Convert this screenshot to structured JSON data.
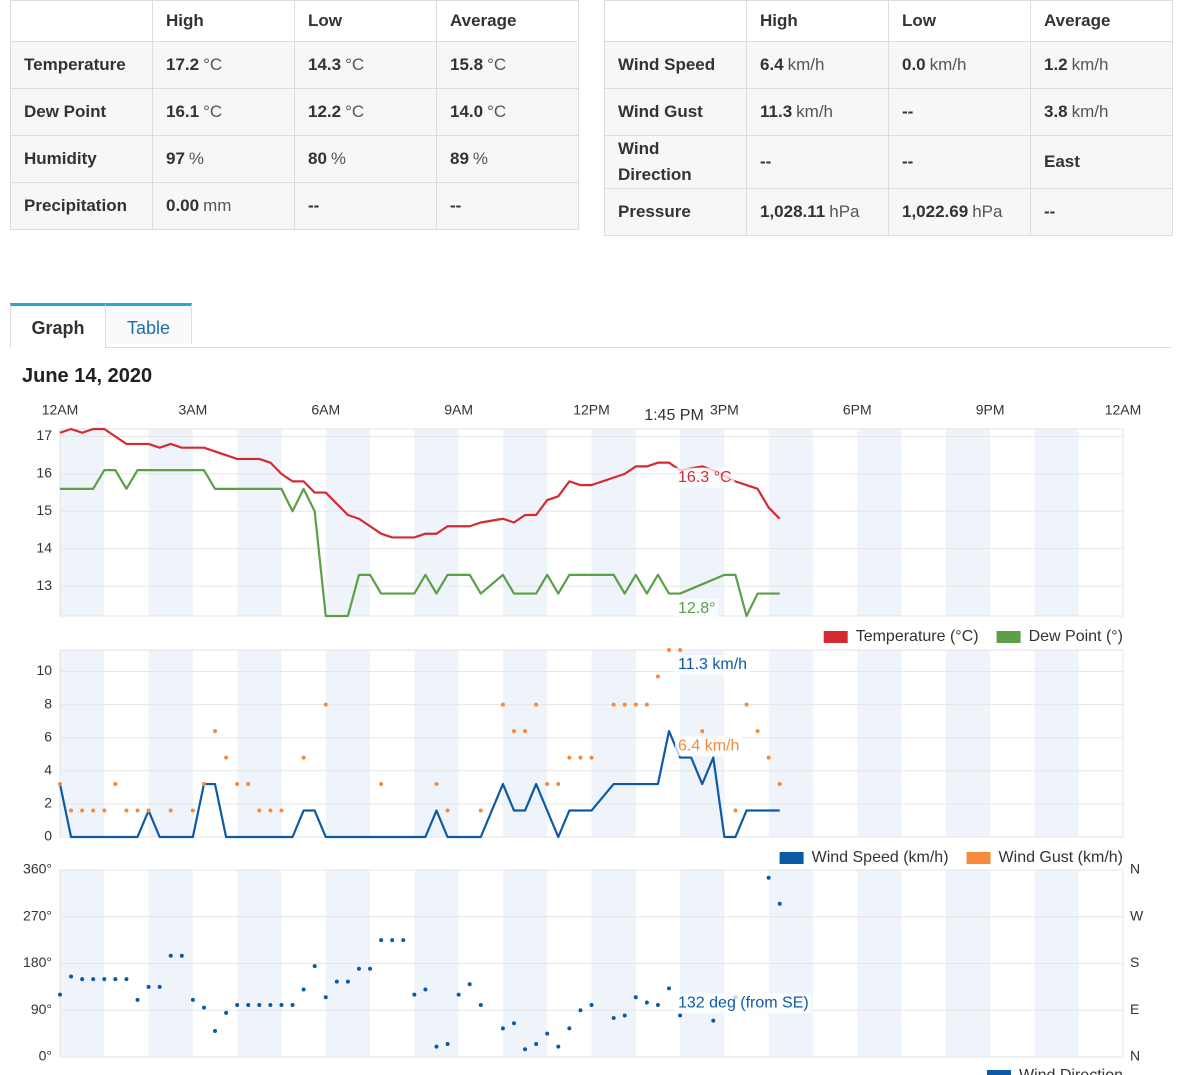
{
  "summary_tables": [
    {
      "columns": [
        "High",
        "Low",
        "Average"
      ],
      "rows": [
        {
          "label": "Temperature",
          "cells": [
            {
              "value": "17.2",
              "unit": "°C"
            },
            {
              "value": "14.3",
              "unit": "°C"
            },
            {
              "value": "15.8",
              "unit": "°C"
            }
          ]
        },
        {
          "label": "Dew Point",
          "cells": [
            {
              "value": "16.1",
              "unit": "°C"
            },
            {
              "value": "12.2",
              "unit": "°C"
            },
            {
              "value": "14.0",
              "unit": "°C"
            }
          ]
        },
        {
          "label": "Humidity",
          "cells": [
            {
              "value": "97",
              "unit": "%"
            },
            {
              "value": "80",
              "unit": "%"
            },
            {
              "value": "89",
              "unit": "%"
            }
          ]
        },
        {
          "label": "Precipitation",
          "cells": [
            {
              "value": "0.00",
              "unit": "mm"
            },
            {
              "value": "--"
            },
            {
              "value": "--"
            }
          ]
        }
      ]
    },
    {
      "columns": [
        "High",
        "Low",
        "Average"
      ],
      "rows": [
        {
          "label": "Wind Speed",
          "cells": [
            {
              "value": "6.4",
              "unit": "km/h"
            },
            {
              "value": "0.0",
              "unit": "km/h"
            },
            {
              "value": "1.2",
              "unit": "km/h"
            }
          ]
        },
        {
          "label": "Wind Gust",
          "cells": [
            {
              "value": "11.3",
              "unit": "km/h"
            },
            {
              "value": "--"
            },
            {
              "value": "3.8",
              "unit": "km/h"
            }
          ]
        },
        {
          "label": "Wind Direction",
          "cells": [
            {
              "value": "--"
            },
            {
              "value": "--"
            },
            {
              "value": "East"
            }
          ]
        },
        {
          "label": "Pressure",
          "cells": [
            {
              "value": "1,028.11",
              "unit": "hPa"
            },
            {
              "value": "1,022.69",
              "unit": "hPa"
            },
            {
              "value": "--"
            }
          ]
        }
      ]
    }
  ],
  "tabs": [
    "Graph",
    "Table"
  ],
  "date": "June 14, 2020",
  "chart_data": [
    {
      "type": "line",
      "xlim": [
        0,
        24
      ],
      "xticks": [
        {
          "value": 0,
          "label": "12AM"
        },
        {
          "value": 3,
          "label": "3AM"
        },
        {
          "value": 6,
          "label": "6AM"
        },
        {
          "value": 9,
          "label": "9AM"
        },
        {
          "value": 12,
          "label": "12PM"
        },
        {
          "value": 15,
          "label": "3PM"
        },
        {
          "value": 18,
          "label": "6PM"
        },
        {
          "value": 21,
          "label": "9PM"
        },
        {
          "value": 24,
          "label": "12AM"
        }
      ],
      "ylim": [
        12.2,
        17.2
      ],
      "yticks": [
        13,
        14,
        15,
        16,
        17
      ],
      "grid": true,
      "series": [
        {
          "name": "Temperature (°C)",
          "color": "#d62a33",
          "x": [
            0,
            0.25,
            0.5,
            0.75,
            1,
            1.5,
            2,
            2.25,
            2.5,
            2.75,
            3.25,
            4,
            4.5,
            4.75,
            5,
            5.25,
            5.5,
            5.75,
            6,
            6.5,
            6.75,
            7.25,
            7.5,
            8,
            8.25,
            8.5,
            8.75,
            9.25,
            9.5,
            10,
            10.25,
            10.5,
            10.75,
            11,
            11.25,
            11.5,
            11.75,
            12,
            12.5,
            12.75,
            13,
            13.25,
            13.5,
            13.75,
            14,
            14.5,
            14.75,
            15.25,
            15.5,
            15.75,
            16,
            16.25
          ],
          "values": [
            17.1,
            17.2,
            17.1,
            17.2,
            17.2,
            16.8,
            16.8,
            16.7,
            16.8,
            16.7,
            16.7,
            16.4,
            16.4,
            16.3,
            16.0,
            15.8,
            15.8,
            15.5,
            15.5,
            14.9,
            14.8,
            14.4,
            14.3,
            14.3,
            14.4,
            14.4,
            14.6,
            14.6,
            14.7,
            14.8,
            14.7,
            14.9,
            14.9,
            15.3,
            15.4,
            15.8,
            15.7,
            15.7,
            15.9,
            16.0,
            16.2,
            16.2,
            16.3,
            16.3,
            16.1,
            16.2,
            16.1,
            15.8,
            15.7,
            15.6,
            15.1,
            14.8
          ]
        },
        {
          "name": "Dew Point (°)",
          "color": "#5b9f46",
          "x": [
            0,
            0.75,
            1,
            1.25,
            1.5,
            1.75,
            3.25,
            3.5,
            5,
            5.25,
            5.5,
            5.75,
            6,
            6.5,
            6.75,
            7,
            7.25,
            8,
            8.25,
            8.5,
            8.75,
            9.25,
            9.5,
            10,
            10.25,
            10.75,
            11,
            11.25,
            11.5,
            12.5,
            12.75,
            13,
            13.25,
            13.5,
            13.75,
            14,
            15,
            15.25,
            15.5,
            15.75,
            16.25
          ],
          "values": [
            15.6,
            15.6,
            16.1,
            16.1,
            15.6,
            16.1,
            16.1,
            15.6,
            15.6,
            15.0,
            15.6,
            15.0,
            12.2,
            12.2,
            13.3,
            13.3,
            12.8,
            12.8,
            13.3,
            12.8,
            13.3,
            13.3,
            12.8,
            13.3,
            12.8,
            12.8,
            13.3,
            12.8,
            13.3,
            13.3,
            12.8,
            13.3,
            12.8,
            13.3,
            12.8,
            12.8,
            13.3,
            13.3,
            12.2,
            12.8,
            12.8
          ]
        }
      ],
      "tooltip": {
        "x": 13.75,
        "label": "1:45 PM",
        "values": [
          16.3,
          12.8
        ],
        "value_labels": [
          "16.3 °C",
          "12.8°"
        ]
      }
    },
    {
      "type": "line",
      "xlim": [
        0,
        24
      ],
      "ylim": [
        0,
        11.3
      ],
      "yticks": [
        0,
        2,
        4,
        6,
        8,
        10
      ],
      "grid": true,
      "series": [
        {
          "name": "Wind Speed (km/h)",
          "color": "#0c5aa6",
          "mode": "line",
          "x": [
            0,
            0.25,
            1.75,
            2,
            2.25,
            3,
            3.25,
            3.5,
            3.75,
            5.25,
            5.5,
            5.75,
            6,
            8.25,
            8.5,
            8.75,
            9.5,
            10,
            10.25,
            10.5,
            10.75,
            11.25,
            11.5,
            12,
            12.5,
            13.5,
            13.75,
            14,
            14.25,
            14.5,
            14.75,
            15,
            15.25,
            15.5,
            16.25
          ],
          "values": [
            3.2,
            0,
            0,
            1.6,
            0,
            0,
            3.2,
            3.2,
            0,
            0,
            1.6,
            1.6,
            0,
            0,
            1.6,
            0,
            0,
            3.2,
            1.6,
            1.6,
            3.2,
            0,
            1.6,
            1.6,
            3.2,
            3.2,
            6.4,
            4.8,
            4.8,
            3.2,
            4.8,
            0,
            0,
            1.6,
            1.6
          ]
        },
        {
          "name": "Wind Gust (km/h)",
          "color": "#f7893a",
          "mode": "markers",
          "x": [
            0,
            0.25,
            0.5,
            0.75,
            1,
            1.25,
            1.5,
            1.75,
            2,
            2.5,
            3,
            3.25,
            3.5,
            3.75,
            4,
            4.25,
            4.5,
            4.75,
            5,
            5.5,
            6,
            7.25,
            8.5,
            8.75,
            9.5,
            10,
            10.25,
            10.5,
            10.75,
            11,
            11.25,
            11.5,
            11.75,
            12,
            12.5,
            12.75,
            13,
            13.25,
            13.5,
            13.75,
            14,
            14.5,
            15.25,
            15.5,
            15.75,
            16,
            16.25
          ],
          "values": [
            3.2,
            1.6,
            1.6,
            1.6,
            1.6,
            3.2,
            1.6,
            1.6,
            1.6,
            1.6,
            1.6,
            3.2,
            6.4,
            4.8,
            3.2,
            3.2,
            1.6,
            1.6,
            1.6,
            4.8,
            8,
            3.2,
            3.2,
            1.6,
            1.6,
            8,
            6.4,
            6.4,
            8,
            3.2,
            3.2,
            4.8,
            4.8,
            4.8,
            8,
            8,
            8,
            8,
            9.7,
            11.3,
            11.3,
            6.4,
            1.6,
            8,
            6.4,
            4.8,
            3.2
          ]
        }
      ],
      "tooltip": {
        "x": 13.75,
        "values": [
          11.3,
          6.4
        ],
        "value_labels": [
          "11.3 km/h",
          "6.4 km/h"
        ]
      }
    },
    {
      "type": "scatter",
      "xlim": [
        0,
        24
      ],
      "ylim": [
        0,
        360
      ],
      "yticks": [
        {
          "value": 0,
          "label": "0°"
        },
        {
          "value": 90,
          "label": "90°"
        },
        {
          "value": 180,
          "label": "180°"
        },
        {
          "value": 270,
          "label": "270°"
        },
        {
          "value": 360,
          "label": "360°"
        }
      ],
      "y2lim": [
        0,
        360
      ],
      "y2ticks": [
        {
          "value": 0,
          "label": "N"
        },
        {
          "value": 90,
          "label": "E"
        },
        {
          "value": 180,
          "label": "S"
        },
        {
          "value": 270,
          "label": "W"
        },
        {
          "value": 360,
          "label": "N"
        }
      ],
      "grid": true,
      "series": [
        {
          "name": "Wind Direction",
          "color": "#0c5aa6",
          "x": [
            0,
            0.25,
            0.5,
            0.75,
            1,
            1.25,
            1.5,
            1.75,
            2,
            2.25,
            2.5,
            2.75,
            3,
            3.25,
            3.5,
            3.75,
            4,
            4.25,
            4.5,
            4.75,
            5,
            5.25,
            5.5,
            5.75,
            6,
            6.25,
            6.5,
            6.75,
            7,
            7.25,
            7.5,
            7.75,
            8,
            8.25,
            8.5,
            8.75,
            9,
            9.25,
            9.5,
            10,
            10.25,
            10.5,
            10.75,
            11,
            11.25,
            11.5,
            11.75,
            12,
            12.5,
            12.75,
            13,
            13.25,
            13.5,
            13.75,
            14,
            14.75,
            15.25,
            16,
            16.25
          ],
          "values": [
            120,
            155,
            150,
            150,
            150,
            150,
            150,
            110,
            135,
            135,
            195,
            195,
            110,
            95,
            50,
            85,
            100,
            100,
            100,
            100,
            100,
            100,
            130,
            175,
            115,
            145,
            145,
            170,
            170,
            225,
            225,
            225,
            120,
            130,
            20,
            25,
            120,
            140,
            100,
            55,
            65,
            15,
            25,
            45,
            20,
            55,
            90,
            100,
            75,
            80,
            115,
            105,
            100,
            132,
            80,
            70,
            115,
            345,
            295
          ]
        }
      ],
      "tooltip": {
        "x": 13.75,
        "values": [
          132
        ],
        "value_labels": [
          "132 deg (from SE)"
        ]
      }
    }
  ]
}
